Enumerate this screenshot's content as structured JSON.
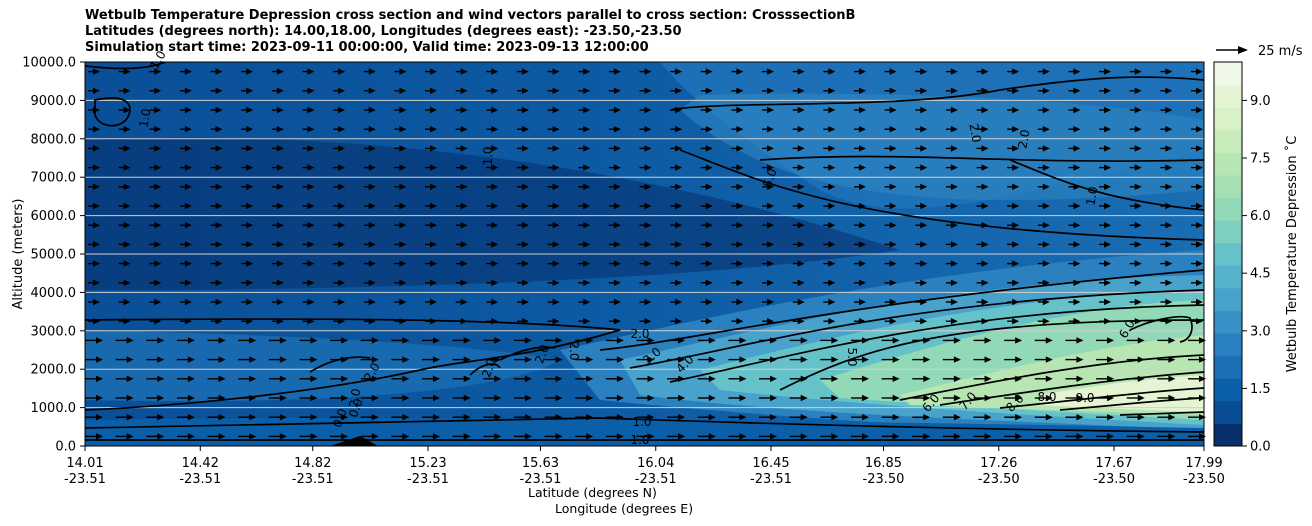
{
  "chart_data": {
    "type": "contour",
    "title": [
      "Wetbulb Temperature Depression cross section and wind vectors parallel to cross section: CrosssectionB",
      "Latitudes (degrees north): 14.00,18.00, Longitudes (degrees east): -23.50,-23.50",
      "Simulation start time: 2023-09-11 00:00:00, Valid time: 2023-09-13 12:00:00"
    ],
    "ylabel": "Altitude (meters)",
    "xlabel_lat": "Latitude (degrees N)",
    "xlabel_lon": "Longitude (degrees E)",
    "ylim": [
      0,
      10000
    ],
    "yticks": [
      "0.0",
      "1000.0",
      "2000.0",
      "3000.0",
      "4000.0",
      "5000.0",
      "6000.0",
      "7000.0",
      "8000.0",
      "9000.0",
      "10000.0"
    ],
    "xticks": [
      {
        "lat": "14.01",
        "lon": "-23.51"
      },
      {
        "lat": "14.42",
        "lon": "-23.51"
      },
      {
        "lat": "14.82",
        "lon": "-23.51"
      },
      {
        "lat": "15.23",
        "lon": "-23.51"
      },
      {
        "lat": "15.63",
        "lon": "-23.51"
      },
      {
        "lat": "16.04",
        "lon": "-23.51"
      },
      {
        "lat": "16.45",
        "lon": "-23.51"
      },
      {
        "lat": "16.85",
        "lon": "-23.50"
      },
      {
        "lat": "17.26",
        "lon": "-23.50"
      },
      {
        "lat": "17.67",
        "lon": "-23.50"
      },
      {
        "lat": "17.99",
        "lon": "-23.50"
      }
    ],
    "colorbar": {
      "label": "Wetbulb Temperature Depression ˚C",
      "min": 0,
      "max": 10,
      "ticks": [
        "0.0",
        "1.5",
        "3.0",
        "4.5",
        "6.0",
        "7.5",
        "9.0"
      ],
      "colors": [
        "#08306b",
        "#084c94",
        "#0b5ea8",
        "#1c6fb4",
        "#2b80bf",
        "#3991c6",
        "#48a2cb",
        "#56b3cc",
        "#66c2c9",
        "#7dcfc0",
        "#92d9b8",
        "#a6e0b2",
        "#b8e6b3",
        "#c9ecbb",
        "#d8f1c6",
        "#e5f5d3",
        "#f0f9e8"
      ]
    },
    "contour_labels": [
      "1.0",
      "1.0",
      "1.0",
      "1.0",
      "1.0",
      "1.0",
      "2.0",
      "2.0",
      "2.0",
      "2.0",
      "2.0",
      "2.0",
      "2.0",
      "2.0",
      "3.0",
      "4.0",
      "5.0",
      "5.0",
      "6.0",
      "6.0",
      "7.0",
      "8.0",
      "8.0",
      "9.0",
      "0.0",
      "0.0"
    ],
    "wind_key": {
      "label": "25 m/s"
    },
    "wind_direction": "parallel to cross section (toward increasing latitude)"
  }
}
